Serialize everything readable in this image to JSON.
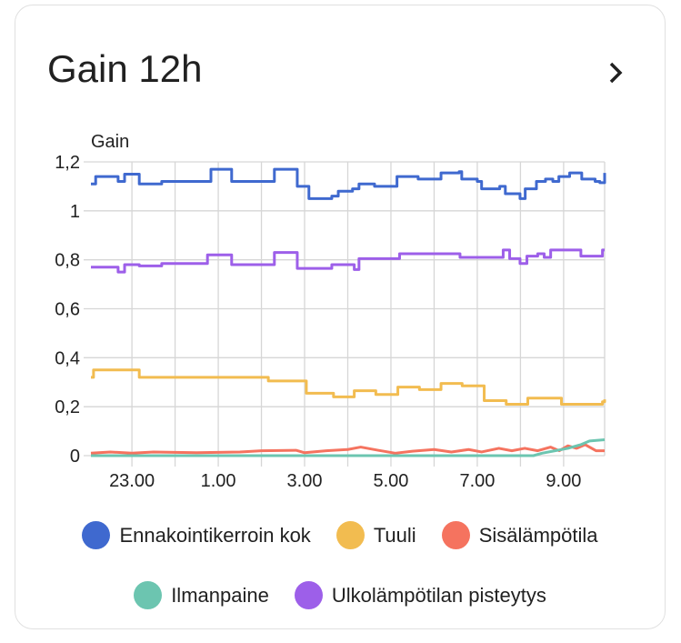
{
  "card": {
    "title": "Gain 12h",
    "more_icon": "chevron-right-icon"
  },
  "chart_data": {
    "type": "line",
    "title": "Gain 12h",
    "ylabel": "Gain",
    "xlabel": "",
    "ylim": [
      0,
      1.2
    ],
    "xlim": [
      22.05,
      33.95
    ],
    "yticks": [
      {
        "v": 0,
        "label": "0"
      },
      {
        "v": 0.2,
        "label": "0,2"
      },
      {
        "v": 0.4,
        "label": "0,4"
      },
      {
        "v": 0.6,
        "label": "0,6"
      },
      {
        "v": 0.8,
        "label": "0,8"
      },
      {
        "v": 1,
        "label": "1"
      },
      {
        "v": 1.2,
        "label": "1,2"
      }
    ],
    "xticks": [
      {
        "v": 23,
        "label": "23.00"
      },
      {
        "v": 25,
        "label": "1.00"
      },
      {
        "v": 27,
        "label": "3.00"
      },
      {
        "v": 29,
        "label": "5.00"
      },
      {
        "v": 31,
        "label": "7.00"
      },
      {
        "v": 33,
        "label": "9.00"
      }
    ],
    "grid": true,
    "legend_position": "bottom",
    "series": [
      {
        "name": "Ennakointikerroin kok",
        "color": "#3f69cf",
        "step": true,
        "points": [
          [
            22.05,
            1.11
          ],
          [
            22.16,
            1.14
          ],
          [
            22.68,
            1.12
          ],
          [
            22.83,
            1.15
          ],
          [
            23.17,
            1.11
          ],
          [
            23.69,
            1.12
          ],
          [
            24.7,
            1.12
          ],
          [
            24.83,
            1.17
          ],
          [
            25.31,
            1.12
          ],
          [
            26.26,
            1.12
          ],
          [
            26.3,
            1.17
          ],
          [
            26.83,
            1.1
          ],
          [
            27.1,
            1.05
          ],
          [
            27.63,
            1.06
          ],
          [
            27.78,
            1.08
          ],
          [
            28.11,
            1.09
          ],
          [
            28.26,
            1.11
          ],
          [
            28.62,
            1.1
          ],
          [
            29.1,
            1.1
          ],
          [
            29.14,
            1.14
          ],
          [
            29.63,
            1.13
          ],
          [
            30.05,
            1.13
          ],
          [
            30.16,
            1.155
          ],
          [
            30.58,
            1.16
          ],
          [
            30.64,
            1.13
          ],
          [
            31.0,
            1.12
          ],
          [
            31.1,
            1.09
          ],
          [
            31.52,
            1.1
          ],
          [
            31.65,
            1.07
          ],
          [
            31.99,
            1.05
          ],
          [
            32.11,
            1.09
          ],
          [
            32.37,
            1.12
          ],
          [
            32.58,
            1.13
          ],
          [
            32.75,
            1.12
          ],
          [
            32.89,
            1.14
          ],
          [
            33.14,
            1.155
          ],
          [
            33.42,
            1.13
          ],
          [
            33.73,
            1.12
          ],
          [
            33.84,
            1.115
          ],
          [
            33.95,
            1.155
          ]
        ]
      },
      {
        "name": "Tuuli",
        "color": "#f2bc50",
        "step": true,
        "points": [
          [
            22.05,
            0.32
          ],
          [
            22.11,
            0.35
          ],
          [
            23.17,
            0.32
          ],
          [
            26.16,
            0.305
          ],
          [
            27.04,
            0.255
          ],
          [
            27.67,
            0.24
          ],
          [
            28.15,
            0.265
          ],
          [
            28.65,
            0.25
          ],
          [
            29.16,
            0.28
          ],
          [
            29.66,
            0.27
          ],
          [
            30.16,
            0.295
          ],
          [
            30.65,
            0.285
          ],
          [
            31.16,
            0.225
          ],
          [
            31.67,
            0.21
          ],
          [
            32.17,
            0.235
          ],
          [
            32.95,
            0.21
          ],
          [
            33.9,
            0.22
          ],
          [
            33.95,
            0.23
          ]
        ]
      },
      {
        "name": "Sisälämpötila",
        "color": "#f5735f",
        "step": false,
        "points": [
          [
            22.05,
            0.01
          ],
          [
            22.5,
            0.015
          ],
          [
            23.0,
            0.01
          ],
          [
            23.5,
            0.015
          ],
          [
            24.5,
            0.012
          ],
          [
            25.5,
            0.015
          ],
          [
            26.0,
            0.02
          ],
          [
            26.8,
            0.022
          ],
          [
            27.0,
            0.012
          ],
          [
            27.5,
            0.02
          ],
          [
            28.0,
            0.025
          ],
          [
            28.3,
            0.035
          ],
          [
            28.7,
            0.022
          ],
          [
            29.1,
            0.01
          ],
          [
            29.5,
            0.018
          ],
          [
            30.0,
            0.025
          ],
          [
            30.4,
            0.015
          ],
          [
            30.8,
            0.025
          ],
          [
            31.1,
            0.015
          ],
          [
            31.5,
            0.03
          ],
          [
            31.8,
            0.02
          ],
          [
            32.1,
            0.03
          ],
          [
            32.4,
            0.02
          ],
          [
            32.7,
            0.035
          ],
          [
            32.9,
            0.02
          ],
          [
            33.1,
            0.04
          ],
          [
            33.3,
            0.03
          ],
          [
            33.5,
            0.045
          ],
          [
            33.75,
            0.02
          ],
          [
            33.95,
            0.02
          ]
        ]
      },
      {
        "name": "Ilmanpaine",
        "color": "#6cc5b0",
        "step": false,
        "points": [
          [
            22.05,
            0.0
          ],
          [
            32.3,
            0.0
          ],
          [
            32.5,
            0.01
          ],
          [
            32.8,
            0.02
          ],
          [
            33.1,
            0.03
          ],
          [
            33.4,
            0.045
          ],
          [
            33.6,
            0.06
          ],
          [
            33.95,
            0.065
          ]
        ]
      },
      {
        "name": "Ulkolämpötilan pisteytys",
        "color": "#9d5fe9",
        "step": true,
        "points": [
          [
            22.05,
            0.77
          ],
          [
            22.68,
            0.75
          ],
          [
            22.83,
            0.78
          ],
          [
            23.17,
            0.775
          ],
          [
            23.69,
            0.785
          ],
          [
            24.75,
            0.82
          ],
          [
            25.31,
            0.78
          ],
          [
            26.3,
            0.83
          ],
          [
            26.83,
            0.765
          ],
          [
            27.63,
            0.78
          ],
          [
            28.15,
            0.76
          ],
          [
            28.26,
            0.805
          ],
          [
            29.2,
            0.825
          ],
          [
            30.6,
            0.81
          ],
          [
            31.6,
            0.84
          ],
          [
            31.75,
            0.805
          ],
          [
            31.99,
            0.785
          ],
          [
            32.15,
            0.815
          ],
          [
            32.4,
            0.825
          ],
          [
            32.55,
            0.81
          ],
          [
            32.7,
            0.84
          ],
          [
            33.4,
            0.815
          ],
          [
            33.9,
            0.84
          ],
          [
            33.95,
            0.84
          ]
        ]
      }
    ]
  }
}
